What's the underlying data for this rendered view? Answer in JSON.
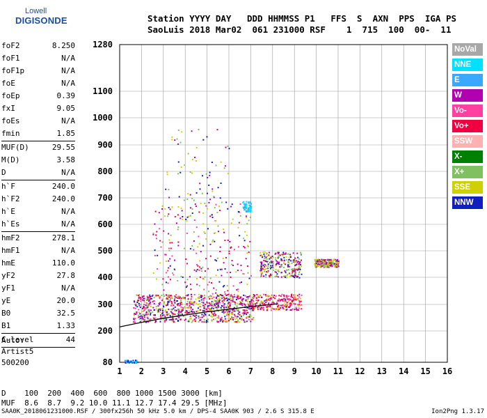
{
  "logo": {
    "line1": "Lowell",
    "line2": "DIGISONDE"
  },
  "header": {
    "line1": "Station YYYY DAY   DDD HHMMSS P1   FFS  S  AXN  PPS  IGA PS",
    "line2": "SaoLuis 2018 Mar02  061 231000 RSF    1  715  100  00-  11"
  },
  "params_group1": [
    {
      "label": "foF2",
      "value": "8.250"
    },
    {
      "label": "foF1",
      "value": "N/A"
    },
    {
      "label": "foF1p",
      "value": "N/A"
    },
    {
      "label": "foE",
      "value": "N/A"
    },
    {
      "label": "foEp",
      "value": "0.39"
    },
    {
      "label": "fxI",
      "value": "9.05"
    },
    {
      "label": "foEs",
      "value": "N/A"
    },
    {
      "label": "fmin",
      "value": "1.85"
    }
  ],
  "params_group2": [
    {
      "label": "MUF(D)",
      "value": "29.55"
    },
    {
      "label": "M(D)",
      "value": "3.58"
    },
    {
      "label": "D",
      "value": "N/A"
    }
  ],
  "params_group3": [
    {
      "label": "h`F",
      "value": "240.0"
    },
    {
      "label": "h`F2",
      "value": "240.0"
    },
    {
      "label": "h`E",
      "value": "N/A"
    },
    {
      "label": "h`Es",
      "value": "N/A"
    }
  ],
  "params_group4": [
    {
      "label": "hmF2",
      "value": "278.1"
    },
    {
      "label": "hmF1",
      "value": "N/A"
    },
    {
      "label": "hmE",
      "value": "110.0"
    },
    {
      "label": "yF2",
      "value": "27.8"
    },
    {
      "label": "yF1",
      "value": "N/A"
    },
    {
      "label": "yE",
      "value": "20.0"
    },
    {
      "label": "B0",
      "value": "32.5"
    },
    {
      "label": "B1",
      "value": "1.33"
    }
  ],
  "params_group5": [
    {
      "label": "C-level",
      "value": "44"
    }
  ],
  "auto": {
    "line1": "Auto:",
    "line2": "Artist5",
    "line3": "500200"
  },
  "legend": [
    {
      "label": "NoVal",
      "color": "#a8a8a8"
    },
    {
      "label": "NNE",
      "color": "#00e0ff"
    },
    {
      "label": "E",
      "color": "#3aa8ff"
    },
    {
      "label": "W",
      "color": "#b000b0"
    },
    {
      "label": "Vo-",
      "color": "#ff40a0"
    },
    {
      "label": "Vo+",
      "color": "#f00040"
    },
    {
      "label": "SSW",
      "color": "#ffb0b0"
    },
    {
      "label": "X-",
      "color": "#008000"
    },
    {
      "label": "X+",
      "color": "#80c060"
    },
    {
      "label": "SSE",
      "color": "#d0d000"
    },
    {
      "label": "NNW",
      "color": "#1020c0"
    }
  ],
  "footer": {
    "d_row": "D    100  200  400  600  800 1000 1500 3000 [km]",
    "muf_row": "MUF  8.6  8.7  9.2 10.0 11.1 12.7 17.4 29.5 [MHz]",
    "file_line": "SAA0K_2018061231000.RSF / 300fx256h 50 kHz 5.0 km / DPS-4 SAA0K 903 / 2.6 S 315.8 E",
    "version": "Ion2Png 1.3.17"
  },
  "chart_data": {
    "type": "scatter",
    "title": "",
    "xlabel": "",
    "ylabel": "",
    "x_unit": "MHz",
    "y_unit": "km",
    "xlim": [
      1,
      16
    ],
    "ylim": [
      80,
      1280
    ],
    "x_ticks": [
      1,
      2,
      3,
      4,
      5,
      6,
      7,
      8,
      9,
      10,
      11,
      12,
      13,
      14,
      15,
      16
    ],
    "y_ticks": [
      80,
      200,
      300,
      400,
      500,
      600,
      700,
      800,
      900,
      1000,
      1100,
      1280
    ],
    "grid": true,
    "legend_position": "right",
    "trace_curve": {
      "x": [
        1.0,
        2.0,
        3.0,
        4.0,
        5.0,
        6.0,
        7.0,
        8.0,
        8.25
      ],
      "y": [
        215,
        232,
        248,
        260,
        272,
        282,
        292,
        300,
        303
      ]
    },
    "echo_regions": [
      {
        "x_range": [
          1.6,
          7.1
        ],
        "y_range": [
          235,
          340
        ],
        "density": "high",
        "colors": [
          "Vo+",
          "Vo-",
          "W",
          "SSE",
          "X+",
          "NNW"
        ]
      },
      {
        "x_range": [
          2.5,
          7.0
        ],
        "y_range": [
          340,
          680
        ],
        "density": "medium",
        "colors": [
          "W",
          "Vo-",
          "NNW",
          "SSE",
          "X+",
          "Vo+"
        ]
      },
      {
        "x_range": [
          3.0,
          6.0
        ],
        "y_range": [
          680,
          960
        ],
        "density": "low",
        "colors": [
          "W",
          "SSE",
          "NNW",
          "X+"
        ]
      },
      {
        "x_range": [
          7.0,
          9.3
        ],
        "y_range": [
          280,
          340
        ],
        "density": "medium",
        "colors": [
          "Vo+",
          "W",
          "SSE",
          "Vo-"
        ]
      },
      {
        "x_range": [
          7.4,
          9.3
        ],
        "y_range": [
          400,
          500
        ],
        "density": "medium",
        "colors": [
          "Vo+",
          "W",
          "SSE",
          "X+",
          "NNW"
        ]
      },
      {
        "x_range": [
          9.9,
          11.0
        ],
        "y_range": [
          440,
          470
        ],
        "density": "medium",
        "colors": [
          "SSE",
          "X+",
          "W"
        ]
      },
      {
        "x_range": [
          6.6,
          7.0
        ],
        "y_range": [
          650,
          690
        ],
        "density": "low",
        "colors": [
          "NNE",
          "E"
        ]
      },
      {
        "x_range": [
          1.2,
          1.8
        ],
        "y_range": [
          80,
          90
        ],
        "density": "low",
        "colors": [
          "NNE",
          "E",
          "NNW"
        ]
      }
    ]
  }
}
